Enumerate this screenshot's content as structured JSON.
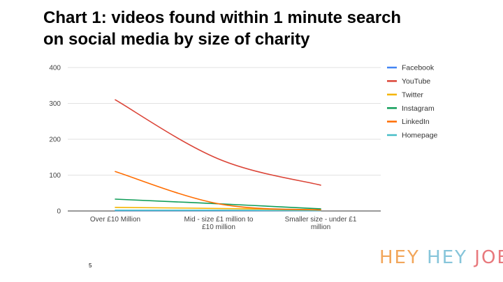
{
  "slide": {
    "title_line1": "Chart 1: videos found within 1 minute search",
    "title_line2": "on social media by size of charity",
    "page_number": "5",
    "logo": {
      "word1": "HEY",
      "word2": "HEY",
      "word3": "JOE"
    }
  },
  "chart_data": {
    "type": "line",
    "title": "",
    "xlabel": "",
    "ylabel": "",
    "categories": [
      [
        "Over £10 Million"
      ],
      [
        "Mid - size £1 million to",
        "£10 million"
      ],
      [
        "Smaller size - under £1",
        "million"
      ]
    ],
    "ylim": [
      0,
      400
    ],
    "yticks": [
      0,
      100,
      200,
      300,
      400
    ],
    "grid": true,
    "legend_position": "right",
    "series": [
      {
        "name": "Facebook",
        "color": "#4285f4",
        "values": [
          1,
          1,
          1
        ]
      },
      {
        "name": "YouTube",
        "color": "#db4437",
        "values": [
          310,
          145,
          72
        ]
      },
      {
        "name": "Twitter",
        "color": "#f4b400",
        "values": [
          10,
          7,
          3
        ]
      },
      {
        "name": "Instagram",
        "color": "#0f9d58",
        "values": [
          33,
          20,
          6
        ]
      },
      {
        "name": "LinkedIn",
        "color": "#ff6d01",
        "values": [
          110,
          20,
          3
        ]
      },
      {
        "name": "Homepage",
        "color": "#46bdc6",
        "values": [
          2,
          2,
          1
        ]
      }
    ]
  }
}
